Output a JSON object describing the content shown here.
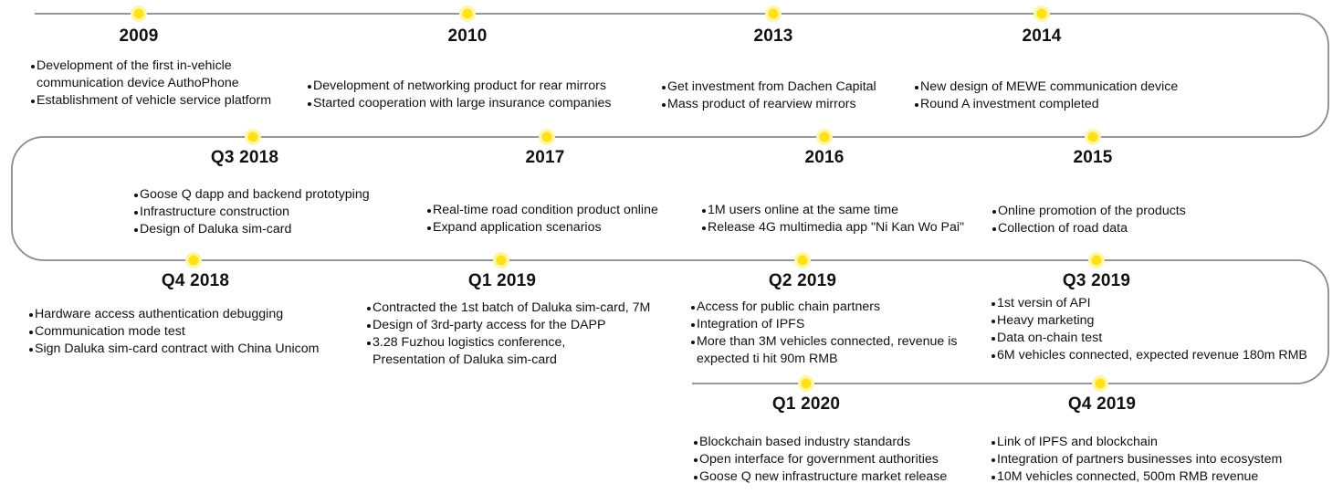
{
  "colors": {
    "line": "#8a8a8a",
    "dot_core": "#ffe11a",
    "dot_halo": "#fff6a8"
  },
  "stages": [
    {
      "year": "2009",
      "items": [
        "Development of the first in-vehicle communication device AuthoPhone",
        "Establishment of vehicle service platform"
      ]
    },
    {
      "year": "2010",
      "items": [
        "Development of networking product for rear mirrors",
        "Started cooperation with large insurance companies"
      ]
    },
    {
      "year": "2013",
      "items": [
        "Get investment from Dachen Capital",
        "Mass product of rearview mirrors"
      ]
    },
    {
      "year": "2014",
      "items": [
        "New design of MEWE communication device",
        "Round A investment completed"
      ]
    },
    {
      "year": "Q3 2018",
      "items": [
        "Goose Q dapp and backend prototyping",
        "Infrastructure construction",
        "Design of Daluka sim-card"
      ]
    },
    {
      "year": "2017",
      "items": [
        "Real-time road condition product online",
        "Expand application scenarios"
      ]
    },
    {
      "year": "2016",
      "items": [
        "1M users online at the same time",
        "Release 4G multimedia app \"Ni Kan Wo Pai\""
      ]
    },
    {
      "year": "2015",
      "items": [
        "Online promotion of the products",
        "Collection of road data"
      ]
    },
    {
      "year": "Q4 2018",
      "items": [
        "Hardware access authentication debugging",
        "Communication mode test",
        "Sign Daluka sim-card contract with China Unicom"
      ]
    },
    {
      "year": "Q1 2019",
      "items": [
        "Contracted the 1st batch of Daluka sim-card, 7M",
        "Design of 3rd-party access for the DAPP",
        "3.28 Fuzhou logistics conference, Presentation of Daluka sim-card"
      ]
    },
    {
      "year": "Q2 2019",
      "items": [
        "Access for public chain partners",
        "Integration of IPFS",
        "More than 3M vehicles connected, revenue is expected ti hit 90m RMB"
      ]
    },
    {
      "year": "Q3 2019",
      "items": [
        "1st versin of API",
        "Heavy marketing",
        "Data on-chain test",
        "6M vehicles connected, expected revenue 180m RMB"
      ]
    },
    {
      "year": "Q1 2020",
      "items": [
        "Blockchain based industry standards",
        "Open interface for government authorities",
        "Goose Q new infrastructure market release"
      ]
    },
    {
      "year": "Q4 2019",
      "items": [
        "Link of IPFS and blockchain",
        "Integration of partners businesses into ecosystem",
        "10M vehicles connected, 500m RMB revenue"
      ]
    }
  ]
}
